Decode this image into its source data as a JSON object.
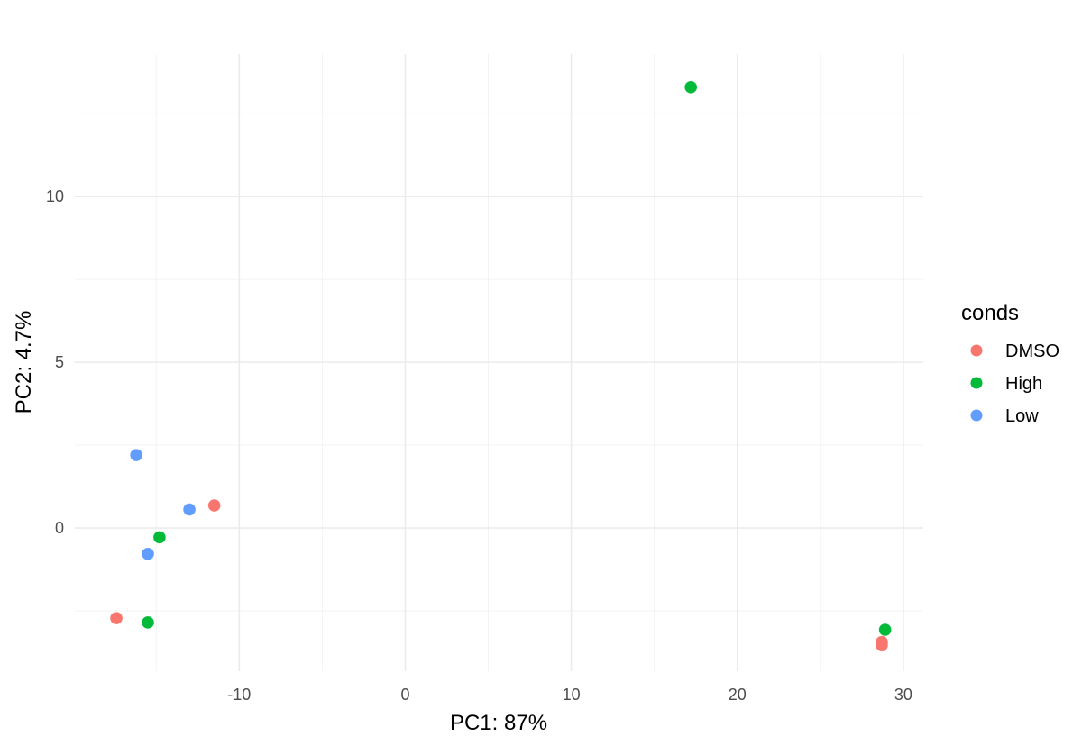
{
  "chart_data": {
    "type": "scatter",
    "title": "",
    "xlabel": "PC1: 87%",
    "ylabel": "PC2: 4.7%",
    "xlim": [
      -19.9,
      31.2
    ],
    "ylim": [
      -4.32,
      14.3
    ],
    "x_ticks": [
      -10,
      0,
      10,
      20,
      30
    ],
    "y_ticks": [
      0,
      5,
      10
    ],
    "x_tick_labels": [
      "-10",
      "0",
      "10",
      "20",
      "30"
    ],
    "y_tick_labels": [
      "0",
      "5",
      "10"
    ],
    "grid": true,
    "legend": {
      "title": "conds",
      "placement": "right",
      "entries": [
        "DMSO",
        "High",
        "Low"
      ]
    },
    "colors": {
      "DMSO": "#F8766D",
      "High": "#00BA38",
      "Low": "#619CFF"
    },
    "series": [
      {
        "name": "DMSO",
        "points": [
          [
            -17.4,
            -2.72
          ],
          [
            -11.5,
            0.68
          ],
          [
            28.7,
            -3.44
          ],
          [
            28.7,
            -3.54
          ]
        ]
      },
      {
        "name": "High",
        "points": [
          [
            17.2,
            13.3
          ],
          [
            -14.8,
            -0.28
          ],
          [
            -15.5,
            -2.85
          ],
          [
            28.9,
            -3.07
          ]
        ]
      },
      {
        "name": "Low",
        "points": [
          [
            -16.2,
            2.2
          ],
          [
            -13.0,
            0.56
          ],
          [
            -15.5,
            -0.78
          ]
        ]
      }
    ]
  }
}
